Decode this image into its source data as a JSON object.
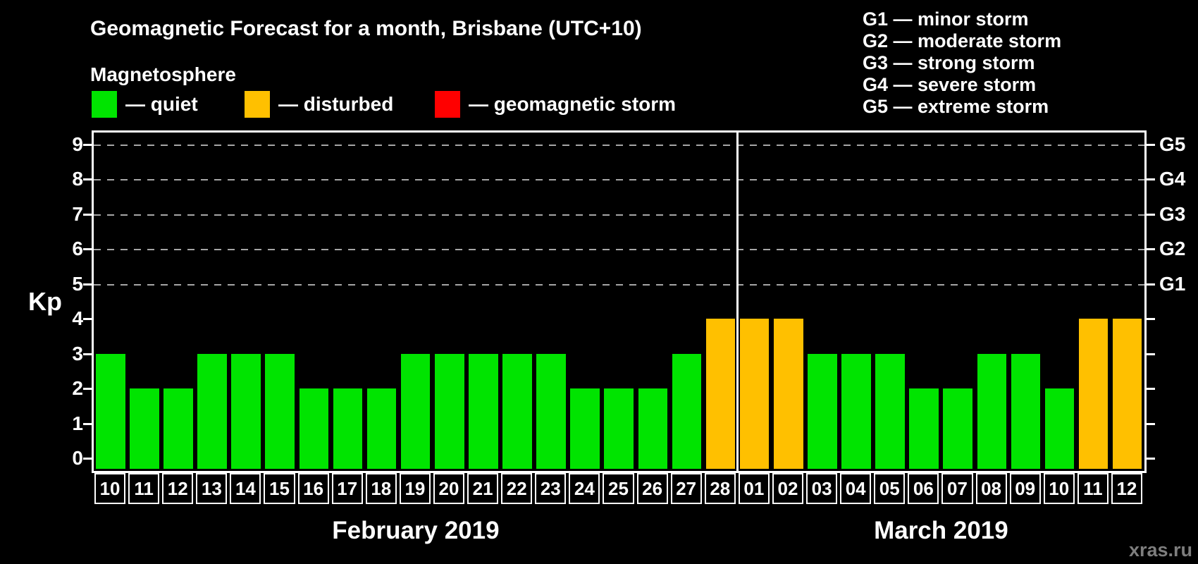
{
  "title": "Geomagnetic Forecast for a month, Brisbane (UTC+10)",
  "subtitle": "Magnetosphere",
  "legend": {
    "items": [
      {
        "key": "quiet",
        "label": "— quiet"
      },
      {
        "key": "disturbed",
        "label": "— disturbed"
      },
      {
        "key": "storm",
        "label": "— geomagnetic storm"
      }
    ]
  },
  "g_scale_legend": [
    "G1 — minor storm",
    "G2 — moderate storm",
    "G3 — strong storm",
    "G4 — severe storm",
    "G5 — extreme storm"
  ],
  "watermark": "xras.ru",
  "colors": {
    "quiet": "#00E400",
    "disturbed": "#FFC000",
    "storm": "#FF0000",
    "axis": "#FFFFFF",
    "grid": "#A6A6A6",
    "background": "#000000",
    "watermark": "#7E7E7E"
  },
  "chart_data": {
    "type": "bar",
    "title": "Geomagnetic Forecast for a month, Brisbane (UTC+10)",
    "ylabel": "Kp",
    "xlabel": "",
    "ylim": [
      0,
      9.5
    ],
    "yticks": [
      0,
      1,
      2,
      3,
      4,
      5,
      6,
      7,
      8,
      9
    ],
    "grid_levels": [
      5,
      6,
      7,
      8,
      9
    ],
    "grid": "dashed-horizontal-at-G-levels",
    "legend_position": "top",
    "right_axis": [
      {
        "kp": 5,
        "label": "G1"
      },
      {
        "kp": 6,
        "label": "G2"
      },
      {
        "kp": 7,
        "label": "G3"
      },
      {
        "kp": 8,
        "label": "G4"
      },
      {
        "kp": 9,
        "label": "G5"
      }
    ],
    "months": [
      {
        "label": "February 2019",
        "days": [
          {
            "day": "10",
            "kp": 3,
            "status": "quiet"
          },
          {
            "day": "11",
            "kp": 2,
            "status": "quiet"
          },
          {
            "day": "12",
            "kp": 2,
            "status": "quiet"
          },
          {
            "day": "13",
            "kp": 3,
            "status": "quiet"
          },
          {
            "day": "14",
            "kp": 3,
            "status": "quiet"
          },
          {
            "day": "15",
            "kp": 3,
            "status": "quiet"
          },
          {
            "day": "16",
            "kp": 2,
            "status": "quiet"
          },
          {
            "day": "17",
            "kp": 2,
            "status": "quiet"
          },
          {
            "day": "18",
            "kp": 2,
            "status": "quiet"
          },
          {
            "day": "19",
            "kp": 3,
            "status": "quiet"
          },
          {
            "day": "20",
            "kp": 3,
            "status": "quiet"
          },
          {
            "day": "21",
            "kp": 3,
            "status": "quiet"
          },
          {
            "day": "22",
            "kp": 3,
            "status": "quiet"
          },
          {
            "day": "23",
            "kp": 3,
            "status": "quiet"
          },
          {
            "day": "24",
            "kp": 2,
            "status": "quiet"
          },
          {
            "day": "25",
            "kp": 2,
            "status": "quiet"
          },
          {
            "day": "26",
            "kp": 2,
            "status": "quiet"
          },
          {
            "day": "27",
            "kp": 3,
            "status": "quiet"
          },
          {
            "day": "28",
            "kp": 4,
            "status": "disturbed"
          }
        ]
      },
      {
        "label": "March 2019",
        "days": [
          {
            "day": "01",
            "kp": 4,
            "status": "disturbed"
          },
          {
            "day": "02",
            "kp": 4,
            "status": "disturbed"
          },
          {
            "day": "03",
            "kp": 3,
            "status": "quiet"
          },
          {
            "day": "04",
            "kp": 3,
            "status": "quiet"
          },
          {
            "day": "05",
            "kp": 3,
            "status": "quiet"
          },
          {
            "day": "06",
            "kp": 2,
            "status": "quiet"
          },
          {
            "day": "07",
            "kp": 2,
            "status": "quiet"
          },
          {
            "day": "08",
            "kp": 3,
            "status": "quiet"
          },
          {
            "day": "09",
            "kp": 3,
            "status": "quiet"
          },
          {
            "day": "10",
            "kp": 2,
            "status": "quiet"
          },
          {
            "day": "11",
            "kp": 4,
            "status": "disturbed"
          },
          {
            "day": "12",
            "kp": 4,
            "status": "disturbed"
          }
        ]
      }
    ]
  }
}
